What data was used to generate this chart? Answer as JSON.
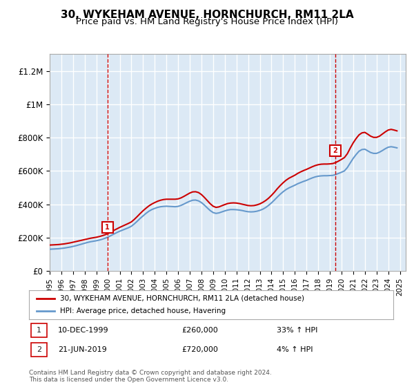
{
  "title": "30, WYKEHAM AVENUE, HORNCHURCH, RM11 2LA",
  "subtitle": "Price paid vs. HM Land Registry's House Price Index (HPI)",
  "title_fontsize": 11,
  "subtitle_fontsize": 9.5,
  "background_color": "#ffffff",
  "plot_bg_color": "#dce9f5",
  "grid_color": "#ffffff",
  "ylabel_color": "#222222",
  "ylim": [
    0,
    1300000
  ],
  "yticks": [
    0,
    200000,
    400000,
    600000,
    800000,
    1000000,
    1200000
  ],
  "ytick_labels": [
    "£0",
    "£200K",
    "£400K",
    "£600K",
    "£800K",
    "£1M",
    "£1.2M"
  ],
  "xmin": 1995.0,
  "xmax": 2025.5,
  "red_line_color": "#cc0000",
  "blue_line_color": "#6699cc",
  "transaction1_x": 1999.95,
  "transaction1_y": 260000,
  "transaction2_x": 2019.47,
  "transaction2_y": 720000,
  "legend_label1": "30, WYKEHAM AVENUE, HORNCHURCH, RM11 2LA (detached house)",
  "legend_label2": "HPI: Average price, detached house, Havering",
  "note1_label": "1",
  "note1_date": "10-DEC-1999",
  "note1_price": "£260,000",
  "note1_hpi": "33% ↑ HPI",
  "note2_label": "2",
  "note2_date": "21-JUN-2019",
  "note2_price": "£720,000",
  "note2_hpi": "4% ↑ HPI",
  "footer": "Contains HM Land Registry data © Crown copyright and database right 2024.\nThis data is licensed under the Open Government Licence v3.0.",
  "hpi_x": [
    1995.0,
    1995.25,
    1995.5,
    1995.75,
    1996.0,
    1996.25,
    1996.5,
    1996.75,
    1997.0,
    1997.25,
    1997.5,
    1997.75,
    1998.0,
    1998.25,
    1998.5,
    1998.75,
    1999.0,
    1999.25,
    1999.5,
    1999.75,
    2000.0,
    2000.25,
    2000.5,
    2000.75,
    2001.0,
    2001.25,
    2001.5,
    2001.75,
    2002.0,
    2002.25,
    2002.5,
    2002.75,
    2003.0,
    2003.25,
    2003.5,
    2003.75,
    2004.0,
    2004.25,
    2004.5,
    2004.75,
    2005.0,
    2005.25,
    2005.5,
    2005.75,
    2006.0,
    2006.25,
    2006.5,
    2006.75,
    2007.0,
    2007.25,
    2007.5,
    2007.75,
    2008.0,
    2008.25,
    2008.5,
    2008.75,
    2009.0,
    2009.25,
    2009.5,
    2009.75,
    2010.0,
    2010.25,
    2010.5,
    2010.75,
    2011.0,
    2011.25,
    2011.5,
    2011.75,
    2012.0,
    2012.25,
    2012.5,
    2012.75,
    2013.0,
    2013.25,
    2013.5,
    2013.75,
    2014.0,
    2014.25,
    2014.5,
    2014.75,
    2015.0,
    2015.25,
    2015.5,
    2015.75,
    2016.0,
    2016.25,
    2016.5,
    2016.75,
    2017.0,
    2017.25,
    2017.5,
    2017.75,
    2018.0,
    2018.25,
    2018.5,
    2018.75,
    2019.0,
    2019.25,
    2019.5,
    2019.75,
    2020.0,
    2020.25,
    2020.5,
    2020.75,
    2021.0,
    2021.25,
    2021.5,
    2021.75,
    2022.0,
    2022.25,
    2022.5,
    2022.75,
    2023.0,
    2023.25,
    2023.5,
    2023.75,
    2024.0,
    2024.25,
    2024.5,
    2024.75
  ],
  "hpi_y": [
    130000,
    131000,
    132000,
    133000,
    135000,
    137000,
    140000,
    143000,
    147000,
    151000,
    156000,
    161000,
    166000,
    171000,
    175000,
    178000,
    181000,
    185000,
    190000,
    196000,
    203000,
    212000,
    221000,
    230000,
    238000,
    245000,
    252000,
    259000,
    268000,
    282000,
    298000,
    315000,
    330000,
    345000,
    358000,
    368000,
    375000,
    381000,
    385000,
    387000,
    388000,
    387000,
    386000,
    385000,
    387000,
    393000,
    401000,
    410000,
    418000,
    424000,
    425000,
    420000,
    410000,
    395000,
    378000,
    362000,
    350000,
    345000,
    348000,
    354000,
    360000,
    365000,
    368000,
    368000,
    367000,
    365000,
    362000,
    358000,
    355000,
    354000,
    355000,
    358000,
    363000,
    370000,
    380000,
    393000,
    408000,
    425000,
    443000,
    460000,
    475000,
    488000,
    498000,
    506000,
    514000,
    523000,
    530000,
    537000,
    543000,
    551000,
    558000,
    564000,
    568000,
    570000,
    571000,
    571000,
    572000,
    573000,
    578000,
    585000,
    592000,
    600000,
    620000,
    648000,
    675000,
    698000,
    718000,
    728000,
    730000,
    720000,
    710000,
    705000,
    705000,
    712000,
    722000,
    733000,
    742000,
    745000,
    742000,
    738000
  ],
  "price_x": [
    1995.0,
    1995.25,
    1995.5,
    1995.75,
    1996.0,
    1996.25,
    1996.5,
    1996.75,
    1997.0,
    1997.25,
    1997.5,
    1997.75,
    1998.0,
    1998.25,
    1998.5,
    1998.75,
    1999.0,
    1999.25,
    1999.5,
    1999.75,
    2000.0,
    2000.25,
    2000.5,
    2000.75,
    2001.0,
    2001.25,
    2001.5,
    2001.75,
    2002.0,
    2002.25,
    2002.5,
    2002.75,
    2003.0,
    2003.25,
    2003.5,
    2003.75,
    2004.0,
    2004.25,
    2004.5,
    2004.75,
    2005.0,
    2005.25,
    2005.5,
    2005.75,
    2006.0,
    2006.25,
    2006.5,
    2006.75,
    2007.0,
    2007.25,
    2007.5,
    2007.75,
    2008.0,
    2008.25,
    2008.5,
    2008.75,
    2009.0,
    2009.25,
    2009.5,
    2009.75,
    2010.0,
    2010.25,
    2010.5,
    2010.75,
    2011.0,
    2011.25,
    2011.5,
    2011.75,
    2012.0,
    2012.25,
    2012.5,
    2012.75,
    2013.0,
    2013.25,
    2013.5,
    2013.75,
    2014.0,
    2014.25,
    2014.5,
    2014.75,
    2015.0,
    2015.25,
    2015.5,
    2015.75,
    2016.0,
    2016.25,
    2016.5,
    2016.75,
    2017.0,
    2017.25,
    2017.5,
    2017.75,
    2018.0,
    2018.25,
    2018.5,
    2018.75,
    2019.0,
    2019.25,
    2019.5,
    2019.75,
    2020.0,
    2020.25,
    2020.5,
    2020.75,
    2021.0,
    2021.25,
    2021.5,
    2021.75,
    2022.0,
    2022.25,
    2022.5,
    2022.75,
    2023.0,
    2023.25,
    2023.5,
    2023.75,
    2024.0,
    2024.25,
    2024.5,
    2024.75
  ],
  "price_y": [
    155000,
    156000,
    157000,
    158000,
    160000,
    162000,
    165000,
    168000,
    172000,
    176000,
    180000,
    184000,
    188000,
    192000,
    196000,
    199000,
    202000,
    206000,
    211000,
    217000,
    224000,
    233000,
    243000,
    252000,
    261000,
    269000,
    277000,
    285000,
    294000,
    309000,
    326000,
    344000,
    361000,
    376000,
    390000,
    401000,
    410000,
    418000,
    424000,
    428000,
    430000,
    430000,
    430000,
    430000,
    432000,
    438000,
    447000,
    457000,
    467000,
    474000,
    475000,
    470000,
    458000,
    441000,
    422000,
    403000,
    388000,
    381000,
    384000,
    391000,
    398000,
    404000,
    407000,
    408000,
    407000,
    404000,
    400000,
    396000,
    392000,
    391000,
    392000,
    396000,
    402000,
    411000,
    422000,
    436000,
    453000,
    472000,
    493000,
    512000,
    529000,
    544000,
    556000,
    565000,
    574000,
    585000,
    594000,
    602000,
    609000,
    617000,
    625000,
    632000,
    637000,
    640000,
    641000,
    641000,
    642000,
    644000,
    650000,
    659000,
    669000,
    680000,
    703000,
    737000,
    768000,
    794000,
    816000,
    828000,
    831000,
    820000,
    808000,
    801000,
    801000,
    808000,
    821000,
    834000,
    845000,
    849000,
    845000,
    840000
  ]
}
